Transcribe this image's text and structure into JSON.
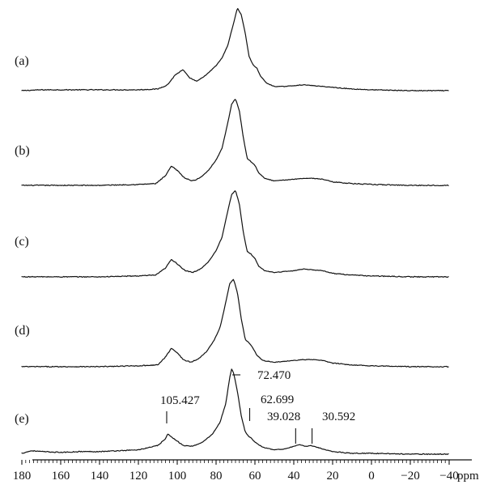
{
  "chart_data": {
    "type": "line",
    "title": "",
    "xlabel": "ppm",
    "ylabel": "",
    "xlim": [
      180,
      -40
    ],
    "x_ticks": [
      180,
      160,
      140,
      120,
      100,
      80,
      60,
      40,
      20,
      0,
      -20,
      -40
    ],
    "tick_labels": [
      "180",
      "160",
      "140",
      "120",
      "100",
      "80",
      "60",
      "40",
      "20",
      "0",
      "−20",
      "−40"
    ],
    "series": [
      {
        "name": "(a)",
        "x": [
          180,
          170,
          150,
          140,
          120,
          110,
          105,
          101,
          97,
          94,
          90,
          85,
          80,
          77,
          74,
          71,
          69,
          67,
          65,
          63,
          61,
          59,
          57,
          54,
          50,
          45,
          40,
          35,
          30,
          25,
          20,
          10,
          0,
          -20,
          -40
        ],
        "y": [
          0.01,
          0.02,
          0.02,
          0.02,
          0.02,
          0.03,
          0.08,
          0.2,
          0.26,
          0.17,
          0.12,
          0.2,
          0.31,
          0.4,
          0.55,
          0.82,
          1.0,
          0.92,
          0.7,
          0.42,
          0.32,
          0.28,
          0.18,
          0.1,
          0.06,
          0.06,
          0.07,
          0.08,
          0.07,
          0.06,
          0.05,
          0.03,
          0.02,
          0.01,
          0.01
        ]
      },
      {
        "name": "(b)",
        "x": [
          180,
          160,
          140,
          120,
          111,
          106,
          103,
          100,
          96,
          92,
          88,
          84,
          80,
          77,
          74,
          72,
          70,
          68,
          66,
          64,
          62,
          60,
          58,
          55,
          50,
          45,
          40,
          35,
          30,
          25,
          20,
          10,
          0,
          -20,
          -40
        ],
        "y": [
          0.01,
          0.01,
          0.01,
          0.02,
          0.03,
          0.12,
          0.23,
          0.18,
          0.09,
          0.06,
          0.1,
          0.18,
          0.3,
          0.43,
          0.72,
          0.94,
          1.0,
          0.86,
          0.56,
          0.32,
          0.28,
          0.24,
          0.15,
          0.09,
          0.06,
          0.07,
          0.08,
          0.09,
          0.09,
          0.08,
          0.05,
          0.03,
          0.02,
          0.01,
          0.01
        ]
      },
      {
        "name": "(c)",
        "x": [
          180,
          160,
          140,
          120,
          111,
          106,
          103,
          100,
          96,
          92,
          88,
          84,
          80,
          77,
          74,
          72,
          70,
          68,
          66,
          64,
          62,
          60,
          58,
          55,
          50,
          45,
          40,
          35,
          30,
          25,
          20,
          10,
          0,
          -20,
          -40
        ],
        "y": [
          0.01,
          0.01,
          0.01,
          0.02,
          0.03,
          0.11,
          0.21,
          0.16,
          0.08,
          0.06,
          0.1,
          0.18,
          0.31,
          0.46,
          0.76,
          0.95,
          1.0,
          0.84,
          0.52,
          0.3,
          0.27,
          0.22,
          0.13,
          0.08,
          0.06,
          0.07,
          0.08,
          0.1,
          0.09,
          0.08,
          0.05,
          0.03,
          0.02,
          0.01,
          0.01
        ]
      },
      {
        "name": "(d)",
        "x": [
          180,
          160,
          140,
          120,
          110,
          106,
          103,
          100,
          97,
          93,
          89,
          85,
          81,
          78,
          75,
          73,
          71,
          69,
          67,
          65,
          63,
          61,
          59,
          56,
          50,
          45,
          40,
          35,
          30,
          25,
          20,
          10,
          0,
          -20,
          -40
        ],
        "y": [
          0.01,
          0.01,
          0.01,
          0.02,
          0.03,
          0.12,
          0.22,
          0.17,
          0.09,
          0.06,
          0.1,
          0.18,
          0.31,
          0.45,
          0.74,
          0.95,
          1.0,
          0.85,
          0.55,
          0.32,
          0.28,
          0.22,
          0.14,
          0.08,
          0.06,
          0.07,
          0.08,
          0.09,
          0.09,
          0.08,
          0.05,
          0.03,
          0.02,
          0.01,
          0.01
        ]
      },
      {
        "name": "(e)",
        "x": [
          180,
          175,
          170,
          160,
          150,
          140,
          130,
          120,
          110,
          106,
          105,
          104,
          101,
          97,
          92,
          87,
          82,
          78,
          75,
          73,
          72,
          71,
          69,
          67,
          65,
          63,
          62,
          60,
          56,
          50,
          45,
          40,
          37,
          34,
          31,
          28,
          25,
          20,
          10,
          0,
          -20,
          -40
        ],
        "y": [
          0.02,
          0.05,
          0.04,
          0.03,
          0.04,
          0.04,
          0.05,
          0.06,
          0.11,
          0.19,
          0.24,
          0.23,
          0.18,
          0.11,
          0.1,
          0.15,
          0.24,
          0.38,
          0.6,
          0.9,
          1.0,
          0.96,
          0.74,
          0.45,
          0.27,
          0.21,
          0.2,
          0.15,
          0.09,
          0.06,
          0.07,
          0.1,
          0.12,
          0.1,
          0.11,
          0.09,
          0.07,
          0.04,
          0.02,
          0.02,
          0.01,
          0.01
        ]
      }
    ],
    "annotations": [
      "105.427",
      "72.470",
      "62.699",
      "39.028",
      "30.592"
    ]
  }
}
